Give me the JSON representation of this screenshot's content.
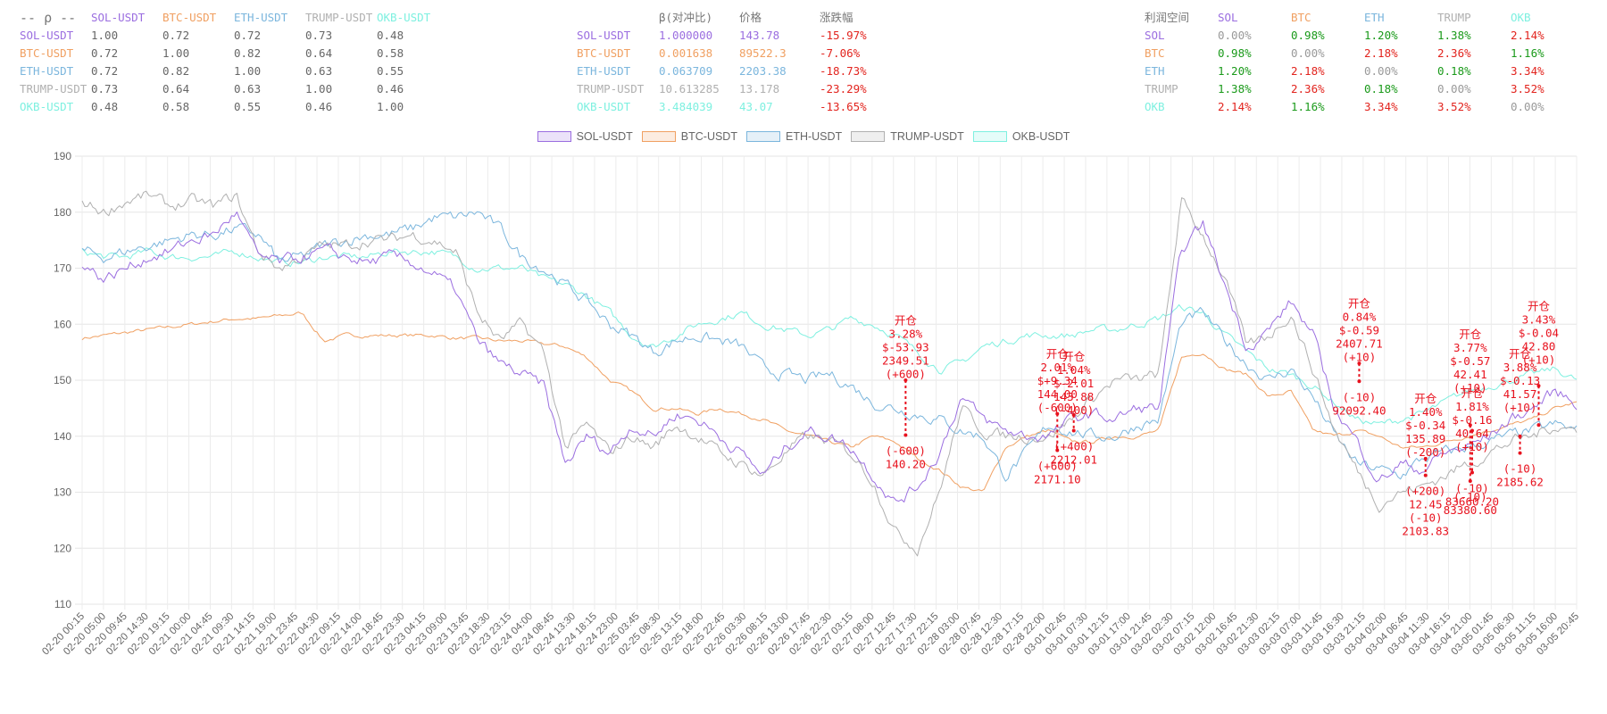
{
  "colors": {
    "SOL-USDT": "#9b6ee0",
    "BTC-USDT": "#f0a062",
    "ETH-USDT": "#7bb6dd",
    "TRUMP-USDT": "#b0b0b0",
    "OKB-USDT": "#7ef0e0",
    "positive": "#1a9a1a",
    "negative": "#e2241e",
    "annotation": "#e8121e"
  },
  "corr_table": {
    "corner": "-- ρ --",
    "columns": [
      "SOL-USDT",
      "BTC-USDT",
      "ETH-USDT",
      "TRUMP-USDT",
      "OKB-USDT"
    ],
    "rows": [
      {
        "label": "SOL-USDT",
        "values": [
          "1.00",
          "0.72",
          "0.72",
          "0.73",
          "0.48"
        ]
      },
      {
        "label": "BTC-USDT",
        "values": [
          "0.72",
          "1.00",
          "0.82",
          "0.64",
          "0.58"
        ]
      },
      {
        "label": "ETH-USDT",
        "values": [
          "0.72",
          "0.82",
          "1.00",
          "0.63",
          "0.55"
        ]
      },
      {
        "label": "TRUMP-USDT",
        "values": [
          "0.73",
          "0.64",
          "0.63",
          "1.00",
          "0.46"
        ]
      },
      {
        "label": "OKB-USDT",
        "values": [
          "0.48",
          "0.58",
          "0.55",
          "0.46",
          "1.00"
        ]
      }
    ]
  },
  "beta_table": {
    "columns": [
      "β(对冲比)",
      "价格",
      "涨跌幅"
    ],
    "rows": [
      {
        "label": "SOL-USDT",
        "beta": "1.000000",
        "price": "143.78",
        "change": "-15.97%"
      },
      {
        "label": "BTC-USDT",
        "beta": "0.001638",
        "price": "89522.3",
        "change": "-7.06%"
      },
      {
        "label": "ETH-USDT",
        "beta": "0.063709",
        "price": "2203.38",
        "change": "-18.73%"
      },
      {
        "label": "TRUMP-USDT",
        "beta": "10.613285",
        "price": "13.178",
        "change": "-23.29%"
      },
      {
        "label": "OKB-USDT",
        "beta": "3.484039",
        "price": "43.07",
        "change": "-13.65%"
      }
    ]
  },
  "profit_table": {
    "corner": "利润空间",
    "columns": [
      "SOL",
      "BTC",
      "ETH",
      "TRUMP",
      "OKB"
    ],
    "column_keys": [
      "SOL-USDT",
      "BTC-USDT",
      "ETH-USDT",
      "TRUMP-USDT",
      "OKB-USDT"
    ],
    "rows": [
      {
        "label": "SOL",
        "values": [
          "0.00%",
          "0.98%",
          "1.20%",
          "1.38%",
          "2.14%"
        ]
      },
      {
        "label": "BTC",
        "values": [
          "0.98%",
          "0.00%",
          "2.18%",
          "2.36%",
          "1.16%"
        ]
      },
      {
        "label": "ETH",
        "values": [
          "1.20%",
          "2.18%",
          "0.00%",
          "0.18%",
          "3.34%"
        ]
      },
      {
        "label": "TRUMP",
        "values": [
          "1.38%",
          "2.36%",
          "0.18%",
          "0.00%",
          "3.52%"
        ]
      },
      {
        "label": "OKB",
        "values": [
          "2.14%",
          "1.16%",
          "3.34%",
          "3.52%",
          "0.00%"
        ]
      }
    ]
  },
  "chart_data": {
    "type": "line",
    "legend_position": "top-center",
    "grid": true,
    "ylim": [
      110,
      190
    ],
    "y_ticks": [
      "110",
      "120",
      "130",
      "140",
      "150",
      "160",
      "170",
      "180",
      "190"
    ],
    "x_tick_labels": [
      "02-20 00:15",
      "02-20 05:00",
      "02-20 09:45",
      "02-20 14:30",
      "02-20 19:15",
      "02-21 00:00",
      "02-21 04:45",
      "02-21 09:30",
      "02-21 14:15",
      "02-21 19:00",
      "02-21 23:45",
      "02-22 04:30",
      "02-22 09:15",
      "02-22 14:00",
      "02-22 18:45",
      "02-22 23:30",
      "02-23 04:15",
      "02-23 09:00",
      "02-23 13:45",
      "02-23 18:30",
      "02-23 23:15",
      "02-24 04:00",
      "02-24 08:45",
      "02-24 13:30",
      "02-24 18:15",
      "02-24 23:00",
      "02-25 03:45",
      "02-25 08:30",
      "02-25 13:15",
      "02-25 18:00",
      "02-25 22:45",
      "02-26 03:30",
      "02-26 08:15",
      "02-26 13:00",
      "02-26 17:45",
      "02-26 22:30",
      "02-27 03:15",
      "02-27 08:00",
      "02-27 12:45",
      "02-27 17:30",
      "02-27 22:15",
      "02-28 03:00",
      "02-28 07:45",
      "02-28 12:30",
      "02-28 17:15",
      "02-28 22:00",
      "03-01 02:45",
      "03-01 07:30",
      "03-01 12:15",
      "03-01 17:00",
      "03-01 21:45",
      "03-02 02:30",
      "03-02 07:15",
      "03-02 12:00",
      "03-02 16:45",
      "03-02 21:30",
      "03-03 02:15",
      "03-03 07:00",
      "03-03 11:45",
      "03-03 16:30",
      "03-03 21:15",
      "03-04 02:00",
      "03-04 06:45",
      "03-04 11:30",
      "03-04 16:15",
      "03-04 21:00",
      "03-05 01:45",
      "03-05 06:30",
      "03-05 11:15",
      "03-05 16:00",
      "03-05 20:45"
    ],
    "series": [
      {
        "name": "SOL-USDT",
        "values": [
          171,
          168,
          170,
          172,
          173,
          175,
          176,
          180,
          172,
          171,
          172,
          173,
          172,
          171,
          172,
          171,
          169,
          166,
          157,
          153,
          151,
          149,
          135,
          140,
          137,
          142,
          140,
          144,
          143,
          140,
          137,
          133,
          138,
          141,
          140,
          138,
          133,
          128,
          131,
          137,
          147,
          143,
          141,
          140,
          140,
          143,
          144,
          143,
          145,
          145,
          173,
          178,
          167,
          156,
          159,
          164,
          158,
          145,
          139,
          132,
          135,
          134,
          137,
          138,
          140,
          143,
          145,
          148,
          146
        ]
      },
      {
        "name": "BTC-USDT",
        "values": [
          157.5,
          158,
          158.5,
          159,
          159.5,
          160,
          160.5,
          161,
          161,
          161.5,
          162,
          157,
          158,
          158,
          158,
          158,
          158,
          157.5,
          157.5,
          157,
          157,
          156.5,
          156,
          154,
          150,
          148,
          145,
          145,
          144,
          145,
          144,
          143,
          141,
          140,
          139,
          138,
          140,
          139,
          136,
          134,
          131,
          130,
          138,
          140,
          141,
          139,
          139,
          140,
          140,
          141,
          154,
          155,
          152,
          151,
          147,
          148,
          141,
          140,
          141,
          140,
          138,
          138,
          139,
          140,
          141,
          142,
          143,
          145,
          146
        ]
      },
      {
        "name": "ETH-USDT",
        "values": [
          173,
          172,
          173,
          174,
          175,
          176,
          176,
          177,
          176,
          171,
          172,
          174,
          175,
          176,
          176,
          177,
          179,
          179,
          180,
          177,
          172,
          170,
          167,
          164,
          160,
          158,
          155,
          157,
          158,
          157,
          156,
          152,
          151,
          150,
          151,
          149,
          146,
          145,
          144,
          143,
          141,
          140,
          133,
          137,
          142,
          141,
          140,
          140,
          142,
          143,
          160,
          162,
          157,
          153,
          150,
          152,
          147,
          140,
          135,
          134,
          133,
          136,
          137,
          138,
          139,
          140,
          141,
          142,
          141
        ]
      },
      {
        "name": "TRUMP-USDT",
        "values": [
          182,
          180,
          182,
          183,
          181,
          182,
          181,
          183,
          173,
          170,
          172,
          174,
          174,
          175,
          175,
          176,
          175,
          173,
          162,
          157,
          160,
          155,
          138,
          142,
          137,
          140,
          138,
          142,
          140,
          137,
          135,
          133,
          137,
          140,
          139,
          137,
          132,
          123,
          120,
          130,
          145,
          141,
          140,
          140,
          140,
          143,
          147,
          150,
          150,
          151,
          182,
          176,
          168,
          156,
          158,
          162,
          152,
          141,
          134,
          128,
          130,
          131,
          133,
          135,
          137,
          139,
          140,
          142,
          141
        ]
      },
      {
        "name": "OKB-USDT",
        "values": [
          173,
          172,
          172,
          173,
          172,
          172,
          172,
          173,
          172,
          171,
          171,
          172,
          172,
          172,
          173,
          173,
          173,
          172,
          170,
          170,
          170,
          168,
          167,
          165,
          162,
          158,
          156,
          158,
          160,
          161,
          162,
          160,
          159,
          158,
          159,
          161,
          160,
          158,
          155,
          152,
          153,
          156,
          157,
          158,
          158,
          158,
          159,
          159,
          160,
          161,
          163,
          162,
          158,
          155,
          152,
          151,
          149,
          146,
          143,
          142,
          143,
          144,
          146,
          148,
          149,
          150,
          151,
          152,
          150
        ]
      }
    ],
    "annotations": [
      {
        "x_frac": 0.551,
        "y_top": 150,
        "y_bottom": 140.2,
        "top_label_y": 160,
        "top_lines": [
          "开仓",
          "3.28%",
          "$-53.93",
          "2349.51",
          "(+600)"
        ],
        "bottom_lines": [
          "(-600)",
          "140.20"
        ]
      },
      {
        "x_frac": 0.6525,
        "y_top": 144,
        "y_bottom": 137.5,
        "top_label_y": 154,
        "top_lines": [
          "开仓",
          "2.01%",
          "$+9.34",
          "144.00",
          "(-600)"
        ],
        "bottom_lines": [
          "(+600)",
          "2171.10"
        ]
      },
      {
        "x_frac": 0.6635,
        "y_top": 143.8,
        "y_bottom": 141,
        "top_label_y": 153.5,
        "top_lines": [
          "开仓",
          "1.04%",
          "$-2.01",
          "143.88",
          "(-400)"
        ],
        "bottom_lines": [
          "(+400)",
          "2212.01"
        ]
      },
      {
        "x_frac": 0.8545,
        "y_top": 153,
        "y_bottom": 149.8,
        "top_label_y": 163,
        "top_lines": [
          "开仓",
          "0.84%",
          "$-0.59",
          "2407.71",
          "(+10)"
        ],
        "bottom_lines": [
          "(-10)",
          "92092.40"
        ]
      },
      {
        "x_frac": 0.8989,
        "y_top": 136,
        "y_bottom": 133,
        "top_label_y": 146,
        "top_lines": [
          "开仓",
          "1.40%",
          "$-0.34",
          "135.89",
          "(-200)"
        ],
        "bottom_lines": [
          "(+200)",
          "12.45",
          "(-10)",
          "2103.83"
        ]
      },
      {
        "x_frac": 0.9288,
        "y_top": 142,
        "y_bottom": 132,
        "top_label_y": 157.5,
        "top_lines": [
          "开仓",
          "3.77%",
          "$-0.57",
          "42.41",
          "(+10)"
        ],
        "bottom_lines": [
          "(-10)",
          "83380.60"
        ]
      },
      {
        "x_frac": 0.9301,
        "y_top": 141,
        "y_bottom": 133.5,
        "top_label_y": 147,
        "top_lines": [
          "开仓",
          "1.81%",
          "$-0.16",
          "40.64",
          "(+10)"
        ],
        "bottom_lines": [
          "(-10)",
          "83660.20"
        ]
      },
      {
        "x_frac": 0.9621,
        "y_top": 140,
        "y_bottom": 137,
        "top_label_y": 154,
        "top_lines": [
          "开仓",
          "3.88%",
          "$-0.13",
          "41.57",
          "(+10)"
        ],
        "bottom_lines": [
          "(-10)",
          "2185.62"
        ]
      },
      {
        "x_frac": 0.9746,
        "y_top": 149,
        "y_bottom": 142,
        "top_label_y": 162.5,
        "top_lines": [
          "开仓",
          "3.43%",
          "$-0.04",
          "42.80",
          "(+10)"
        ],
        "bottom_lines": []
      }
    ]
  }
}
